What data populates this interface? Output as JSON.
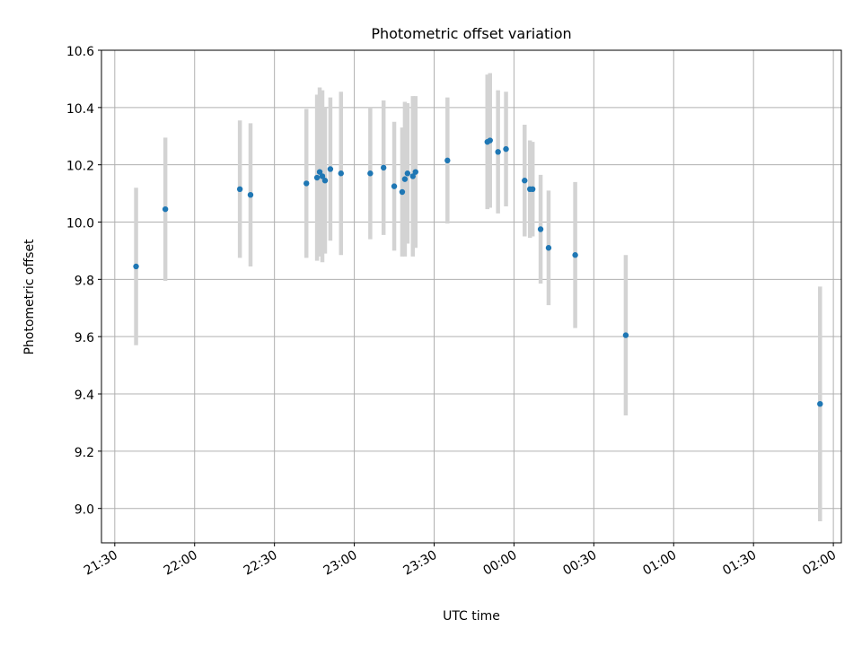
{
  "chart_data": {
    "type": "scatter",
    "title": "Photometric offset variation",
    "xlabel": "UTC time",
    "ylabel": "Photometric offset",
    "ylim": [
      8.88,
      10.6
    ],
    "y_ticks": [
      9.0,
      9.2,
      9.4,
      9.6,
      9.8,
      10.0,
      10.2,
      10.4,
      10.6
    ],
    "y_tick_labels": [
      "9.0",
      "9.2",
      "9.4",
      "9.6",
      "9.8",
      "10.0",
      "10.2",
      "10.4",
      "10.6"
    ],
    "x_range_time": [
      "21:25",
      "02:03"
    ],
    "x_ticks": [
      "21:30",
      "22:00",
      "22:30",
      "23:00",
      "23:30",
      "00:00",
      "00:30",
      "01:00",
      "01:30",
      "02:00"
    ],
    "grid": true,
    "colors": {
      "point": "#1f77b4",
      "errorbar": "#d3d3d3",
      "grid": "#b0b0b0"
    },
    "points": [
      {
        "x": "21:38",
        "y": 9.845,
        "err": 0.275
      },
      {
        "x": "21:49",
        "y": 10.045,
        "err": 0.25
      },
      {
        "x": "22:17",
        "y": 10.115,
        "err": 0.24
      },
      {
        "x": "22:21",
        "y": 10.095,
        "err": 0.25
      },
      {
        "x": "22:42",
        "y": 10.135,
        "err": 0.26
      },
      {
        "x": "22:46",
        "y": 10.155,
        "err": 0.29
      },
      {
        "x": "22:47",
        "y": 10.175,
        "err": 0.295
      },
      {
        "x": "22:48",
        "y": 10.16,
        "err": 0.3
      },
      {
        "x": "22:49",
        "y": 10.145,
        "err": 0.255
      },
      {
        "x": "22:51",
        "y": 10.185,
        "err": 0.25
      },
      {
        "x": "22:55",
        "y": 10.17,
        "err": 0.285
      },
      {
        "x": "23:06",
        "y": 10.17,
        "err": 0.23
      },
      {
        "x": "23:11",
        "y": 10.19,
        "err": 0.235
      },
      {
        "x": "23:15",
        "y": 10.125,
        "err": 0.225
      },
      {
        "x": "23:18",
        "y": 10.105,
        "err": 0.225
      },
      {
        "x": "23:19",
        "y": 10.15,
        "err": 0.27
      },
      {
        "x": "23:20",
        "y": 10.17,
        "err": 0.245
      },
      {
        "x": "23:22",
        "y": 10.16,
        "err": 0.28
      },
      {
        "x": "23:23",
        "y": 10.175,
        "err": 0.265
      },
      {
        "x": "23:35",
        "y": 10.215,
        "err": 0.22
      },
      {
        "x": "23:50",
        "y": 10.28,
        "err": 0.235
      },
      {
        "x": "23:51",
        "y": 10.285,
        "err": 0.235
      },
      {
        "x": "23:54",
        "y": 10.245,
        "err": 0.215
      },
      {
        "x": "23:57",
        "y": 10.255,
        "err": 0.2
      },
      {
        "x": "00:04",
        "y": 10.145,
        "err": 0.195
      },
      {
        "x": "00:06",
        "y": 10.115,
        "err": 0.17
      },
      {
        "x": "00:07",
        "y": 10.115,
        "err": 0.165
      },
      {
        "x": "00:10",
        "y": 9.975,
        "err": 0.19
      },
      {
        "x": "00:13",
        "y": 9.91,
        "err": 0.2
      },
      {
        "x": "00:23",
        "y": 9.885,
        "err": 0.255
      },
      {
        "x": "00:42",
        "y": 9.605,
        "err": 0.28
      },
      {
        "x": "01:55",
        "y": 9.365,
        "err": 0.41
      }
    ]
  }
}
